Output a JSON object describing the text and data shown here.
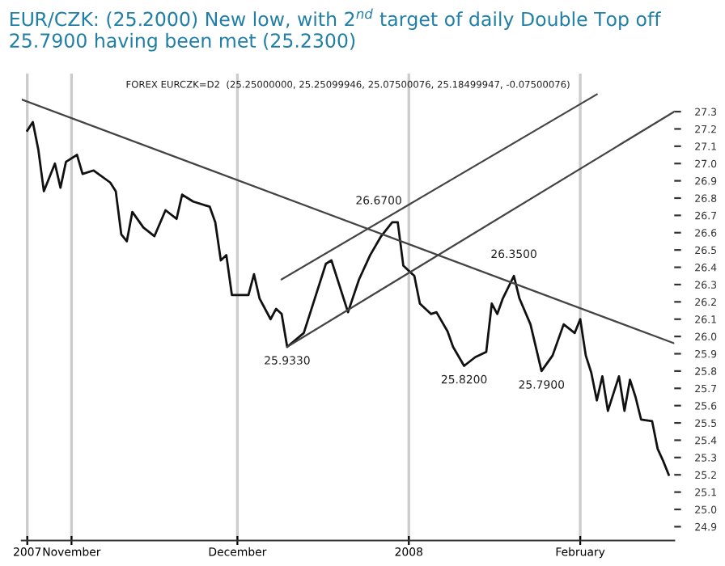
{
  "chart_data": {
    "type": "line",
    "title": "EUR/CZK: (25.2000) New low, with 2$^{nd}$ target of daily Double Top off 25.7900 having been met (25.2300)",
    "subtitle": "FOREX EURCZK=D2  (25.25000000, 25.25099946, 25.07500076, 25.18499947, -0.07500076)",
    "series": [
      {
        "color": "#111111",
        "x": [
          "2007-10-24",
          "2007-10-25",
          "2007-10-26",
          "2007-10-27",
          "2007-10-29",
          "2007-10-30",
          "2007-10-31",
          "2007-11-02",
          "2007-11-03",
          "2007-11-05",
          "2007-11-08",
          "2007-11-09",
          "2007-11-10",
          "2007-11-11",
          "2007-11-12",
          "2007-11-14",
          "2007-11-16",
          "2007-11-18",
          "2007-11-20",
          "2007-11-21",
          "2007-11-23",
          "2007-11-26",
          "2007-11-27",
          "2007-11-28",
          "2007-11-29",
          "2007-11-30",
          "2007-12-01",
          "2007-12-03",
          "2007-12-04",
          "2007-12-05",
          "2007-12-07",
          "2007-12-08",
          "2007-12-09",
          "2007-12-10",
          "2007-12-13",
          "2007-12-15",
          "2007-12-17",
          "2007-12-18",
          "2007-12-21",
          "2007-12-23",
          "2007-12-25",
          "2007-12-27",
          "2007-12-29",
          "2007-12-30",
          "2007-12-31",
          "2008-01-02",
          "2008-01-03",
          "2008-01-05",
          "2008-01-06",
          "2008-01-08",
          "2008-01-09",
          "2008-01-11",
          "2008-01-13",
          "2008-01-15",
          "2008-01-16",
          "2008-01-17",
          "2008-01-18",
          "2008-01-20",
          "2008-01-21",
          "2008-01-23",
          "2008-01-25",
          "2008-01-27",
          "2008-01-29",
          "2008-01-31",
          "2008-02-01",
          "2008-02-02",
          "2008-02-03",
          "2008-02-04",
          "2008-02-05",
          "2008-02-06",
          "2008-02-08",
          "2008-02-09",
          "2008-02-10",
          "2008-02-11",
          "2008-02-12",
          "2008-02-14",
          "2008-02-15",
          "2008-02-16",
          "2008-02-17"
        ],
        "values": [
          27.19,
          27.24,
          27.08,
          26.84,
          27.0,
          26.86,
          27.01,
          27.05,
          26.94,
          26.96,
          26.89,
          26.84,
          26.59,
          26.55,
          26.72,
          26.63,
          26.58,
          26.73,
          26.68,
          26.82,
          26.78,
          26.75,
          26.66,
          26.44,
          26.47,
          26.24,
          26.24,
          26.24,
          26.36,
          26.22,
          26.1,
          26.16,
          26.13,
          25.94,
          26.02,
          26.22,
          26.42,
          26.44,
          26.14,
          26.33,
          26.47,
          26.58,
          26.66,
          26.66,
          26.41,
          26.35,
          26.19,
          26.13,
          26.14,
          26.03,
          25.94,
          25.83,
          25.88,
          25.91,
          26.19,
          26.13,
          26.22,
          26.35,
          26.22,
          26.07,
          25.8,
          25.89,
          26.07,
          26.02,
          26.1,
          25.89,
          25.79,
          25.63,
          25.77,
          25.57,
          25.77,
          25.57,
          25.75,
          25.65,
          25.52,
          25.51,
          25.35,
          25.28,
          25.2
        ]
      },
      {
        "color": "#444444",
        "x": [
          "2007-10-23",
          "2008-02-18"
        ],
        "values": [
          27.37,
          25.96
        ]
      },
      {
        "color": "#444444",
        "x": [
          "2007-12-09",
          "2008-02-04"
        ],
        "values": [
          26.33,
          27.4
        ]
      },
      {
        "color": "#444444",
        "x": [
          "2007-12-10",
          "2008-02-18"
        ],
        "values": [
          25.94,
          27.3
        ]
      }
    ],
    "annotations": [
      {
        "text": "25.9330",
        "x": "2007-12-10",
        "y": 25.94
      },
      {
        "text": "26.6700",
        "x": "2007-12-29",
        "y": 26.66
      },
      {
        "text": "25.8200",
        "x": "2008-01-11",
        "y": 25.83
      },
      {
        "text": "26.3500",
        "x": "2008-01-20",
        "y": 26.35
      },
      {
        "text": "25.7900",
        "x": "2008-01-25",
        "y": 25.8
      }
    ],
    "xlim": [
      "2007-10-23",
      "2008-02-18"
    ],
    "xticks": [
      {
        "value": "2007-10-24",
        "label": "2007"
      },
      {
        "value": "2007-11-01",
        "label": "November"
      },
      {
        "value": "2007-12-01",
        "label": "December"
      },
      {
        "value": "2008-01-01",
        "label": "2008"
      },
      {
        "value": "2008-02-01",
        "label": "February"
      }
    ],
    "ylim": [
      24.82,
      27.52
    ],
    "yticks": [
      24.9,
      {
        "value": 25.0,
        "label": "25.0"
      },
      25.1,
      25.2,
      25.3,
      25.4,
      25.5,
      25.6,
      25.7,
      25.8,
      25.9,
      {
        "value": 26.0,
        "label": "26.0"
      },
      26.1,
      26.2,
      26.3,
      26.4,
      26.5,
      26.6,
      26.7,
      26.8,
      26.9,
      {
        "value": 27.0,
        "label": "27.0"
      },
      27.1,
      27.2,
      27.3
    ],
    "grid": "x",
    "legend": false,
    "marker": "none",
    "line_style": "solid"
  }
}
